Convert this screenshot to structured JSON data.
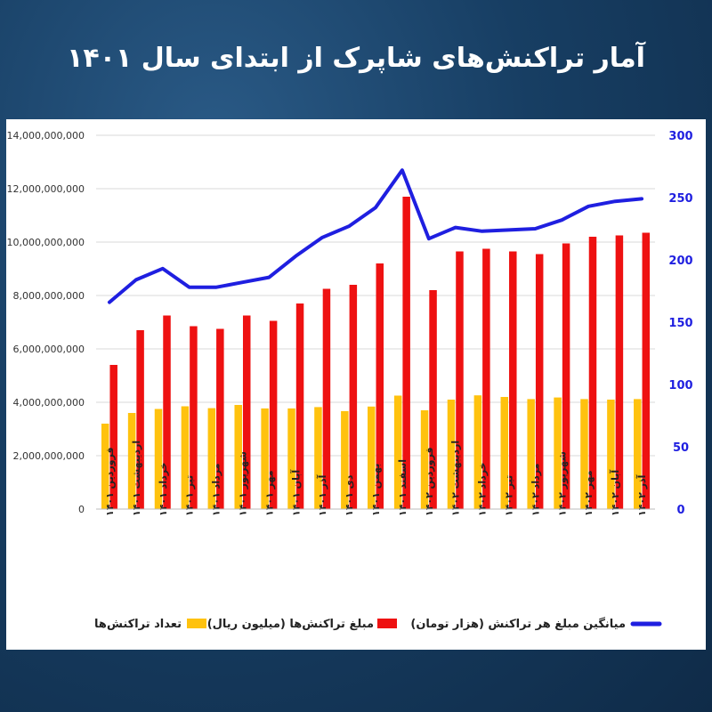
{
  "title": "آمار تراکنش‌های شاپرک از ابتدای سال ۱۴۰۱",
  "chart_data": {
    "type": "bar",
    "categories": [
      "فروردین ۱۴۰۱",
      "اردیبهشت ۱۴۰۱",
      "خرداد ۱۴۰۱",
      "تیر ۱۴۰۱",
      "مرداد ۱۴۰۱",
      "شهریور ۱۴۰۱",
      "مهر ۱۴۰۱",
      "آبان ۱۴۰۱",
      "آذر ۱۴۰۱",
      "دی ۱۴۰۱",
      "بهمن ۱۴۰۱",
      "اسفند ۱۴۰۱",
      "فروردین ۱۴۰۲",
      "اردیبهشت ۱۴۰۲",
      "خرداد ۱۴۰۲",
      "تیر ۱۴۰۲",
      "مرداد ۱۴۰۲",
      "شهریور ۱۴۰۲",
      "مهر ۱۴۰۲",
      "آبان ۱۴۰۲",
      "آذر ۱۴۰۲"
    ],
    "series": [
      {
        "name": "تعداد تراکنش‌ها",
        "type": "bar",
        "axis": "left",
        "color": "#ffc20e",
        "values": [
          3200000000,
          3600000000,
          3750000000,
          3850000000,
          3780000000,
          3900000000,
          3770000000,
          3770000000,
          3820000000,
          3670000000,
          3840000000,
          4250000000,
          3700000000,
          4100000000,
          4260000000,
          4200000000,
          4120000000,
          4180000000,
          4120000000,
          4100000000,
          4120000000
        ]
      },
      {
        "name": "مبلغ تراکنش‌ها (میلیون ریال)",
        "type": "bar",
        "axis": "left",
        "color": "#ee1111",
        "values": [
          5400000000,
          6700000000,
          7250000000,
          6850000000,
          6750000000,
          7250000000,
          7050000000,
          7700000000,
          8250000000,
          8400000000,
          9200000000,
          11700000000,
          8200000000,
          9650000000,
          9750000000,
          9650000000,
          9550000000,
          9950000000,
          10200000000,
          10250000000,
          10350000000
        ]
      },
      {
        "name": "میانگین مبلغ هر تراکنش (هزار تومان)",
        "type": "line",
        "axis": "right",
        "color": "#1f1fe0",
        "values": [
          166,
          184,
          193,
          178,
          178,
          182,
          186,
          203,
          218,
          227,
          242,
          272,
          217,
          226,
          223,
          224,
          225,
          232,
          243,
          247,
          249
        ]
      }
    ],
    "y_left": {
      "ylim": [
        0,
        14000000000
      ],
      "ticks": [
        "0",
        "2,000,000,000",
        "4,000,000,000",
        "6,000,000,000",
        "8,000,000,000",
        "10,000,000,000",
        "12,000,000,000",
        "14,000,000,000"
      ]
    },
    "y_right": {
      "ylim": [
        0,
        300
      ],
      "ticks": [
        "0",
        "50",
        "100",
        "150",
        "200",
        "250",
        "300"
      ]
    },
    "grid": true,
    "legend_position": "bottom",
    "legend_colors": {
      "line": "#1f1fe0",
      "red": "#ee1111",
      "yellow": "#ffc20e"
    }
  }
}
